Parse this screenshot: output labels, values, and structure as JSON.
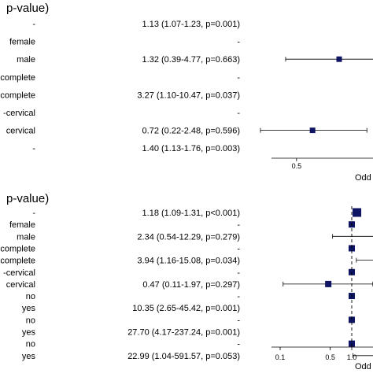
{
  "colors": {
    "marker": "#0d1463",
    "line": "#000000",
    "text": "#000000"
  },
  "chart_data": [
    {
      "type": "forest",
      "header": "p-value)",
      "xaxis": {
        "scale": "log",
        "ticks": [
          "0.5"
        ],
        "label": "Odd"
      },
      "rows": [
        {
          "level": "-",
          "ci_text": "1.13 (1.07-1.23, p=0.001)",
          "or": 1.13,
          "lo": 1.07,
          "hi": 1.23
        },
        {
          "level": "female",
          "ci_text": "-",
          "or": null,
          "lo": null,
          "hi": null
        },
        {
          "level": "male",
          "ci_text": "1.32 (0.39-4.77, p=0.663)",
          "or": 1.32,
          "lo": 0.39,
          "hi": 4.77
        },
        {
          "level": "complete",
          "ci_text": "-",
          "or": null,
          "lo": null,
          "hi": null
        },
        {
          "level": "complete",
          "ci_text": "3.27 (1.10-10.47, p=0.037)",
          "or": 3.27,
          "lo": 1.1,
          "hi": 10.47
        },
        {
          "level": "-cervical",
          "ci_text": "-",
          "or": null,
          "lo": null,
          "hi": null
        },
        {
          "level": "cervical",
          "ci_text": "0.72 (0.22-2.48, p=0.596)",
          "or": 0.72,
          "lo": 0.22,
          "hi": 2.48
        },
        {
          "level": "-",
          "ci_text": "1.40 (1.13-1.76, p=0.003)",
          "or": 1.4,
          "lo": 1.13,
          "hi": 1.76
        }
      ]
    },
    {
      "type": "forest",
      "header": "p-value)",
      "xaxis": {
        "scale": "log",
        "ticks": [
          "0.1",
          "0.5",
          "1.0"
        ],
        "label": "Odd"
      },
      "rows": [
        {
          "level": "-",
          "ci_text": "1.18 (1.09-1.31, p<0.001)",
          "or": 1.18,
          "lo": 1.09,
          "hi": 1.31
        },
        {
          "level": "female",
          "ci_text": "-",
          "or": 1,
          "lo": null,
          "hi": null
        },
        {
          "level": "male",
          "ci_text": "2.34 (0.54-12.29, p=0.279)",
          "or": 2.34,
          "lo": 0.54,
          "hi": 12.29
        },
        {
          "level": "complete",
          "ci_text": "-",
          "or": 1,
          "lo": null,
          "hi": null
        },
        {
          "level": "complete",
          "ci_text": "3.94 (1.16-15.08, p=0.034)",
          "or": 3.94,
          "lo": 1.16,
          "hi": 15.08
        },
        {
          "level": "-cervical",
          "ci_text": "-",
          "or": 1,
          "lo": null,
          "hi": null
        },
        {
          "level": "cervical",
          "ci_text": "0.47 (0.11-1.97, p=0.297)",
          "or": 0.47,
          "lo": 0.11,
          "hi": 1.97
        },
        {
          "level": "no",
          "ci_text": "-",
          "or": 1,
          "lo": null,
          "hi": null
        },
        {
          "level": "yes",
          "ci_text": "10.35 (2.65-45.42, p=0.001)",
          "or": 10.35,
          "lo": 2.65,
          "hi": 45.42
        },
        {
          "level": "no",
          "ci_text": "-",
          "or": 1,
          "lo": null,
          "hi": null
        },
        {
          "level": "yes",
          "ci_text": "27.70 (4.17-237.24, p=0.001)",
          "or": 27.7,
          "lo": 4.17,
          "hi": 237.24
        },
        {
          "level": "no",
          "ci_text": "-",
          "or": 1,
          "lo": null,
          "hi": null
        },
        {
          "level": "yes",
          "ci_text": "22.99 (1.04-591.57, p=0.053)",
          "or": 22.99,
          "lo": 1.04,
          "hi": 591.57
        }
      ]
    }
  ]
}
